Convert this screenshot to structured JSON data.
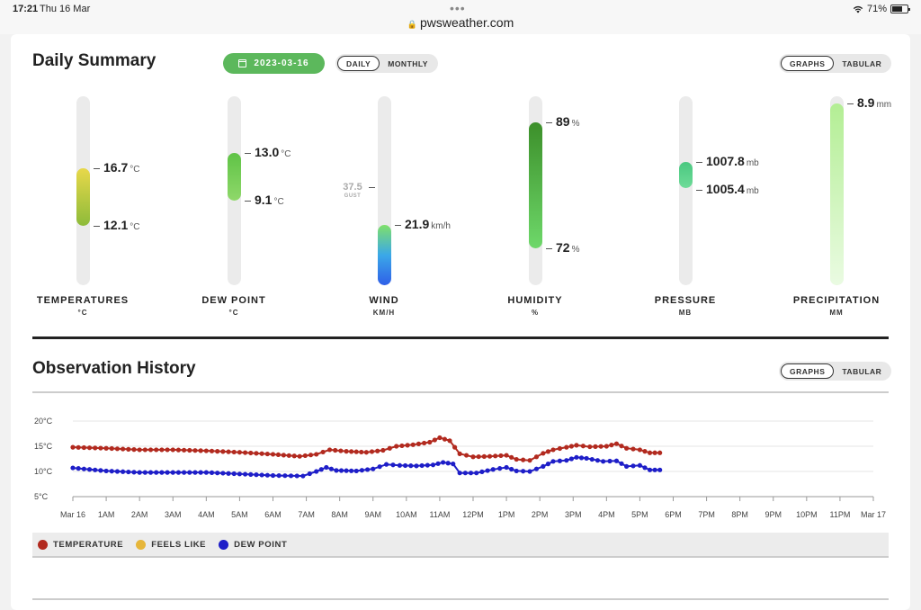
{
  "status_bar": {
    "time": "17:21",
    "date": "Thu 16 Mar",
    "url": "pwsweather.com",
    "battery": "71%"
  },
  "daily_summary": {
    "title": "Daily Summary",
    "date_button": "2023-03-16",
    "period_toggle": {
      "options": [
        "DAILY",
        "MONTHLY"
      ],
      "active": "DAILY"
    },
    "view_toggle": {
      "options": [
        "GRAPHS",
        "TABULAR"
      ],
      "active": "GRAPHS"
    },
    "gauges": [
      {
        "label": "TEMPERATURES",
        "unit_label": "°C",
        "high": "16.7",
        "low": "12.1",
        "unit": "°C",
        "colors": [
          "#e8d84a",
          "#8dbb3a"
        ]
      },
      {
        "label": "DEW POINT",
        "unit_label": "°C",
        "high": "13.0",
        "low": "9.1",
        "unit": "°C",
        "colors": [
          "#6cc84a",
          "#8fd86a"
        ]
      },
      {
        "label": "WIND",
        "unit_label": "KM/H",
        "high": "21.9",
        "unit": "km/h",
        "gust": "37.5",
        "gust_label": "GUST",
        "colors": [
          "#7fe06a",
          "#2f6fe8"
        ]
      },
      {
        "label": "HUMIDITY",
        "unit_label": "%",
        "high": "89",
        "low": "72",
        "unit": "%",
        "colors": [
          "#3c8f2a",
          "#6ed86a"
        ]
      },
      {
        "label": "PRESSURE",
        "unit_label": "MB",
        "high": "1007.8",
        "low": "1005.4",
        "unit": "mb",
        "colors": [
          "#4ac880",
          "#6edb98"
        ]
      },
      {
        "label": "PRECIPITATION",
        "unit_label": "MM",
        "high": "8.9",
        "unit": "mm",
        "colors": [
          "#b8f09a",
          "#e8fbe0"
        ]
      }
    ]
  },
  "observation_history": {
    "title": "Observation History",
    "view_toggle": {
      "options": [
        "GRAPHS",
        "TABULAR"
      ],
      "active": "GRAPHS"
    },
    "legend": [
      {
        "label": "TEMPERATURE",
        "color": "#b22a1f"
      },
      {
        "label": "FEELS LIKE",
        "color": "#e6b63a"
      },
      {
        "label": "DEW POINT",
        "color": "#1e1ec8"
      }
    ]
  },
  "chart_data": {
    "type": "line",
    "x_ticks": [
      "Mar 16",
      "1AM",
      "2AM",
      "3AM",
      "4AM",
      "5AM",
      "6AM",
      "7AM",
      "8AM",
      "9AM",
      "10AM",
      "11AM",
      "12PM",
      "1PM",
      "2PM",
      "3PM",
      "4PM",
      "5PM",
      "6PM",
      "7PM",
      "8PM",
      "9PM",
      "10PM",
      "11PM",
      "Mar 17"
    ],
    "y_ticks": [
      "20°C",
      "15°C",
      "10°C",
      "5°C"
    ],
    "ylim": [
      5,
      20
    ],
    "xlim": [
      0,
      24
    ],
    "series": [
      {
        "name": "TEMPERATURE",
        "color": "#b22a1f",
        "points": [
          [
            0,
            14.8
          ],
          [
            1,
            14.6
          ],
          [
            2,
            14.3
          ],
          [
            3,
            14.3
          ],
          [
            4,
            14.1
          ],
          [
            5,
            13.8
          ],
          [
            6,
            13.4
          ],
          [
            6.8,
            13.0
          ],
          [
            7.3,
            13.4
          ],
          [
            7.7,
            14.3
          ],
          [
            8.2,
            14.0
          ],
          [
            8.8,
            13.8
          ],
          [
            9.3,
            14.2
          ],
          [
            9.7,
            15.0
          ],
          [
            10.2,
            15.3
          ],
          [
            10.7,
            15.8
          ],
          [
            11.0,
            16.7
          ],
          [
            11.3,
            16.1
          ],
          [
            11.6,
            13.5
          ],
          [
            12.0,
            12.9
          ],
          [
            12.5,
            13.0
          ],
          [
            13.0,
            13.2
          ],
          [
            13.3,
            12.4
          ],
          [
            13.7,
            12.2
          ],
          [
            14.1,
            13.6
          ],
          [
            14.4,
            14.3
          ],
          [
            14.8,
            14.8
          ],
          [
            15.1,
            15.2
          ],
          [
            15.5,
            14.9
          ],
          [
            16.0,
            15.0
          ],
          [
            16.3,
            15.5
          ],
          [
            16.6,
            14.6
          ],
          [
            17.0,
            14.3
          ],
          [
            17.3,
            13.7
          ],
          [
            17.6,
            13.7
          ]
        ]
      },
      {
        "name": "DEW POINT",
        "color": "#1e1ec8",
        "points": [
          [
            0,
            10.7
          ],
          [
            1,
            10.1
          ],
          [
            2,
            9.8
          ],
          [
            3,
            9.8
          ],
          [
            4,
            9.8
          ],
          [
            5,
            9.5
          ],
          [
            6,
            9.2
          ],
          [
            6.9,
            9.1
          ],
          [
            7.3,
            10.0
          ],
          [
            7.6,
            10.8
          ],
          [
            7.9,
            10.2
          ],
          [
            8.5,
            10.1
          ],
          [
            9.0,
            10.5
          ],
          [
            9.4,
            11.4
          ],
          [
            9.8,
            11.2
          ],
          [
            10.3,
            11.1
          ],
          [
            10.8,
            11.3
          ],
          [
            11.1,
            11.8
          ],
          [
            11.4,
            11.5
          ],
          [
            11.6,
            9.7
          ],
          [
            12.1,
            9.7
          ],
          [
            12.6,
            10.4
          ],
          [
            13.0,
            10.8
          ],
          [
            13.3,
            10.1
          ],
          [
            13.7,
            10.0
          ],
          [
            14.1,
            11.0
          ],
          [
            14.4,
            12.0
          ],
          [
            14.8,
            12.2
          ],
          [
            15.1,
            12.8
          ],
          [
            15.4,
            12.6
          ],
          [
            15.9,
            12.0
          ],
          [
            16.3,
            12.1
          ],
          [
            16.6,
            11.0
          ],
          [
            17.0,
            11.2
          ],
          [
            17.3,
            10.3
          ],
          [
            17.6,
            10.3
          ]
        ]
      }
    ]
  }
}
